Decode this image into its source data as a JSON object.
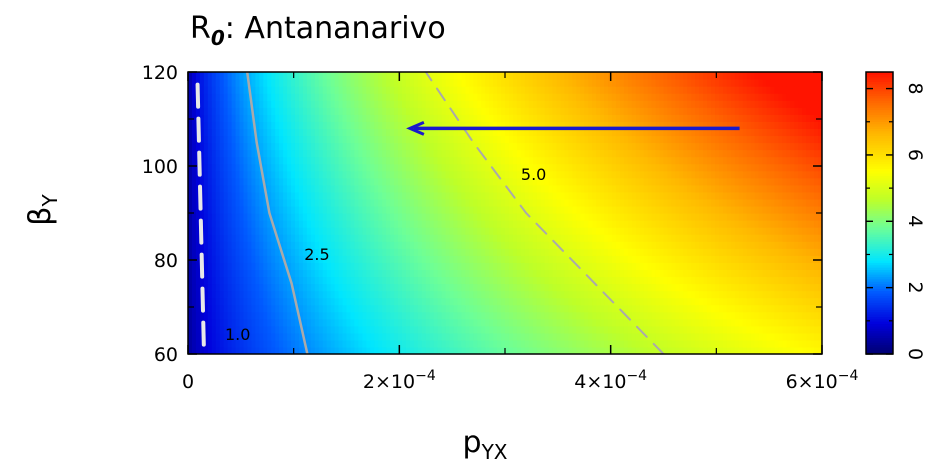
{
  "chart_data": {
    "type": "heatmap",
    "title": {
      "base": "R",
      "sub": "0",
      "rest": ": Antananarivo"
    },
    "xlabel": {
      "base": "p",
      "sub": "YX"
    },
    "ylabel": {
      "base": "β",
      "sub": "Y"
    },
    "xlim": [
      0,
      0.0006
    ],
    "ylim": [
      60,
      120
    ],
    "x_ticks": [
      {
        "value": 0,
        "mantissa": "0",
        "exponent": ""
      },
      {
        "value": 0.0002,
        "mantissa": "2×10",
        "exponent": "−4"
      },
      {
        "value": 0.0004,
        "mantissa": "4×10",
        "exponent": "−4"
      },
      {
        "value": 0.0006,
        "mantissa": "6×10",
        "exponent": "−4"
      }
    ],
    "x_minor_ticks": [
      0.0001,
      0.0003,
      0.0005
    ],
    "y_ticks": [
      60,
      80,
      100,
      120
    ],
    "y_minor_ticks": [
      70,
      90,
      110
    ],
    "colorbar": {
      "range": [
        0,
        8.5
      ],
      "ticks": [
        0,
        2,
        4,
        6,
        8
      ],
      "tick_labels": [
        "0",
        "2",
        "4",
        "6",
        "8"
      ],
      "minor_ticks": [
        1,
        3,
        5,
        7
      ]
    },
    "surface_samples": {
      "description_of_model": "R0 value over (p_YX, beta_Y)",
      "points": [
        {
          "x": 0,
          "y": 60,
          "z": 0.3
        },
        {
          "x": 0,
          "y": 120,
          "z": 0.3
        },
        {
          "x": 0.0001,
          "y": 60,
          "z": 2.1
        },
        {
          "x": 0.0002,
          "y": 60,
          "z": 3.5
        },
        {
          "x": 0.0004,
          "y": 60,
          "z": 4.8
        },
        {
          "x": 0.0006,
          "y": 60,
          "z": 5.6
        },
        {
          "x": 0.0002,
          "y": 120,
          "z": 4.7
        },
        {
          "x": 0.0004,
          "y": 120,
          "z": 6.6
        },
        {
          "x": 0.0006,
          "y": 120,
          "z": 8.2
        }
      ]
    },
    "contours": [
      {
        "level": 1.0,
        "label": "1.0",
        "style": "dashed-thick",
        "x": [
          1.5e-05,
          9e-06
        ],
        "y": [
          62,
          118
        ],
        "label_at": {
          "x": 3.5e-05,
          "y": 63
        }
      },
      {
        "level": 2.5,
        "label": "2.5",
        "style": "solid",
        "x": [
          0.000113,
          9.8e-05,
          7.7e-05,
          6.5e-05,
          5.6e-05
        ],
        "y": [
          60,
          75,
          90,
          105,
          120
        ],
        "label_at": {
          "x": 0.00011,
          "y": 80
        }
      },
      {
        "level": 5.0,
        "label": "5.0",
        "style": "dashed",
        "x": [
          0.00045,
          0.000385,
          0.00032,
          0.00027,
          0.000225
        ],
        "y": [
          60,
          75,
          90,
          105,
          120
        ],
        "label_at": {
          "x": 0.000315,
          "y": 97
        }
      }
    ],
    "arrow": {
      "x_start": 0.000522,
      "x_end": 0.00021,
      "y": 108,
      "color": "#1a1acc"
    }
  }
}
